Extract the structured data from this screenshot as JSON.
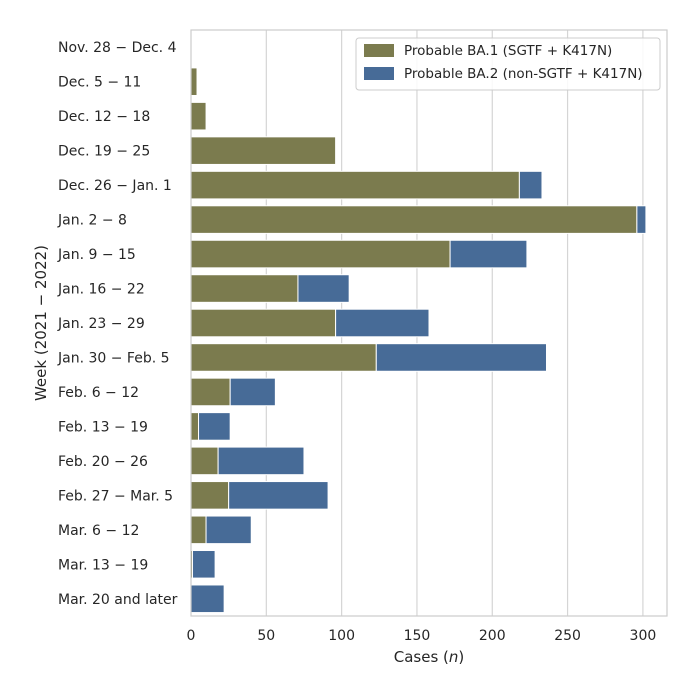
{
  "chart_data": {
    "type": "bar",
    "orientation": "horizontal",
    "stacked": true,
    "title": "",
    "xlabel_prefix": "Cases (",
    "xlabel_var": "n",
    "xlabel_suffix": ")",
    "ylabel": "Week (2021 − 2022)",
    "xlim": [
      0,
      316
    ],
    "xticks": [
      "0",
      "50",
      "100",
      "150",
      "200",
      "250",
      "300"
    ],
    "grid": "vertical",
    "legend_position": "top-right",
    "categories": [
      "Nov. 28 − Dec. 4",
      "Dec. 5 − 11",
      "Dec. 12 − 18",
      "Dec. 19 − 25",
      "Dec. 26 − Jan. 1",
      "Jan. 2 − 8",
      "Jan. 9 − 15",
      "Jan. 16 − 22",
      "Jan. 23 − 29",
      "Jan. 30 − Feb. 5",
      "Feb. 6 − 12",
      "Feb. 13 − 19",
      "Feb. 20 − 26",
      "Feb. 27 − Mar. 5",
      "Mar. 6 − 12",
      "Mar. 13 − 19",
      "Mar. 20 and later"
    ],
    "series": [
      {
        "name": "Probable BA.1 (SGTF + K417N)",
        "color": "#7b7b4e",
        "values": [
          0,
          4,
          10,
          96,
          218,
          296,
          172,
          71,
          96,
          123,
          26,
          5,
          18,
          25,
          10,
          1,
          0
        ]
      },
      {
        "name": "Probable BA.2 (non-SGTF + K417N)",
        "color": "#476b97",
        "values": [
          0,
          0,
          0,
          0,
          15,
          6,
          51,
          34,
          62,
          113,
          30,
          21,
          57,
          66,
          30,
          15,
          22
        ]
      }
    ]
  }
}
